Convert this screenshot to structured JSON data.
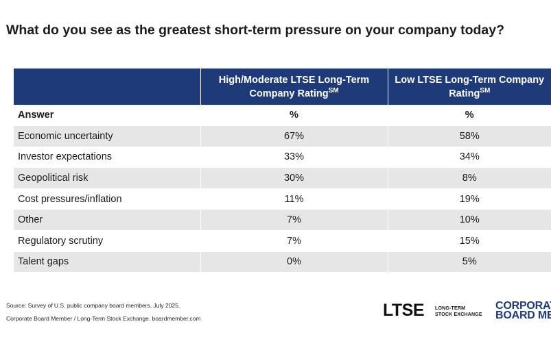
{
  "title": "What do you see as the greatest short-term pressure on your company today?",
  "chart_data": {
    "type": "table",
    "title": "What do you see as the greatest short-term pressure on your company today?",
    "columns": [
      {
        "label": "High/Moderate LTSE Long-Term Company Rating",
        "superscript": "SM"
      },
      {
        "label": "Low LTSE Long-Term Company Rating",
        "superscript": "SM"
      }
    ],
    "subheader": {
      "answer": "Answer",
      "col1": "%",
      "col2": "%"
    },
    "rows": [
      {
        "answer": "Economic uncertainty",
        "values": [
          "67%",
          "58%"
        ]
      },
      {
        "answer": "Investor expectations",
        "values": [
          "33%",
          "34%"
        ]
      },
      {
        "answer": "Geopolitical risk",
        "values": [
          "30%",
          "8%"
        ]
      },
      {
        "answer": "Cost pressures/inflation",
        "values": [
          "11%",
          "19%"
        ]
      },
      {
        "answer": "Other",
        "values": [
          "7%",
          "10%"
        ]
      },
      {
        "answer": "Regulatory scrutiny",
        "values": [
          "7%",
          "15%"
        ]
      },
      {
        "answer": "Talent gaps",
        "values": [
          "0%",
          "5%"
        ]
      }
    ]
  },
  "footer": {
    "source": "Source: Survey of U.S. public company board members, July 2025.",
    "credit": "Corporate Board Member / Long-Term Stock Exchange. boardmember.com"
  },
  "logos": {
    "ltse_mark": "LTSE",
    "ltse_line1": "LONG-TERM",
    "ltse_line2": "STOCK EXCHANGE",
    "cbm_line1": "CORPORATE",
    "cbm_line2": "BOARD MEMBER"
  },
  "colors": {
    "header_bg": "#1e3a78",
    "stripe_bg": "#e6e6e6",
    "brand_blue": "#1e3a78"
  }
}
